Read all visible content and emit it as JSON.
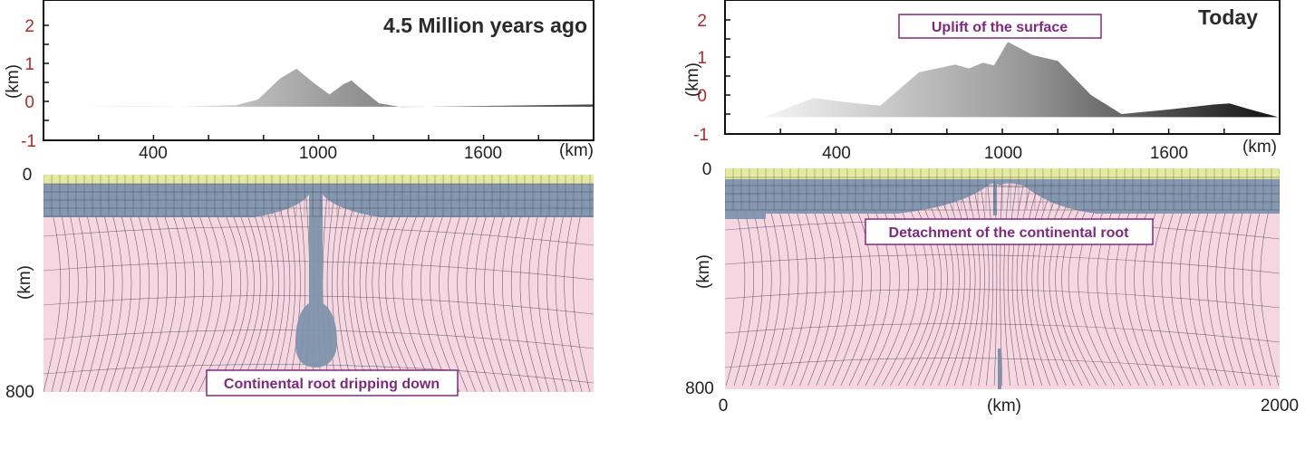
{
  "panels": [
    {
      "title": "4.5 Million years ago",
      "surface": {
        "y_axis_label": "(km)",
        "y_ticks": [
          "2",
          "1",
          "0",
          "-1"
        ],
        "x_ticks": [
          "400",
          "1000",
          "1600"
        ],
        "x_unit": "(km)",
        "profile_km": [
          [
            150,
            -0.1
          ],
          [
            500,
            -0.14
          ],
          [
            700,
            -0.1
          ],
          [
            780,
            0.05
          ],
          [
            860,
            0.6
          ],
          [
            920,
            0.86
          ],
          [
            980,
            0.5
          ],
          [
            1040,
            0.18
          ],
          [
            1090,
            0.45
          ],
          [
            1120,
            0.55
          ],
          [
            1160,
            0.3
          ],
          [
            1220,
            -0.05
          ],
          [
            1300,
            -0.15
          ],
          [
            1600,
            -0.12
          ],
          [
            2000,
            -0.08
          ]
        ]
      },
      "model": {
        "y_ticks": [
          "0",
          "800"
        ],
        "y_axis_label": "(km)",
        "annotation": "Continental root dripping down"
      }
    },
    {
      "title": "Today",
      "surface": {
        "annotation": "Uplift of the surface",
        "y_axis_label": "(km)",
        "y_ticks": [
          "2",
          "1",
          "0",
          "-1"
        ],
        "x_ticks": [
          "400",
          "1000",
          "1600"
        ],
        "x_unit": "(km)",
        "profile_km": [
          [
            150,
            -0.55
          ],
          [
            320,
            -0.08
          ],
          [
            450,
            -0.2
          ],
          [
            560,
            -0.28
          ],
          [
            700,
            0.6
          ],
          [
            830,
            0.8
          ],
          [
            880,
            0.7
          ],
          [
            930,
            0.85
          ],
          [
            970,
            0.78
          ],
          [
            1020,
            1.4
          ],
          [
            1110,
            1.05
          ],
          [
            1200,
            0.9
          ],
          [
            1320,
            0.0
          ],
          [
            1430,
            -0.5
          ],
          [
            1600,
            -0.38
          ],
          [
            1760,
            -0.25
          ],
          [
            1820,
            -0.22
          ],
          [
            1880,
            -0.35
          ],
          [
            1995,
            -0.58
          ]
        ]
      },
      "model": {
        "y_ticks": [
          "0",
          "800"
        ],
        "y_axis_label": "(km)",
        "annotation": "Detachment of the continental root",
        "x_ticks": [
          "0",
          "(km)",
          "2000"
        ]
      }
    }
  ],
  "colors": {
    "crust": "#e6eaa0",
    "lithosphere": "#7f93ad",
    "mantle": "#f6d6e0",
    "mesh": "#2f3440",
    "tick_red": "#b02a2a",
    "label": "#7d2a7d"
  }
}
